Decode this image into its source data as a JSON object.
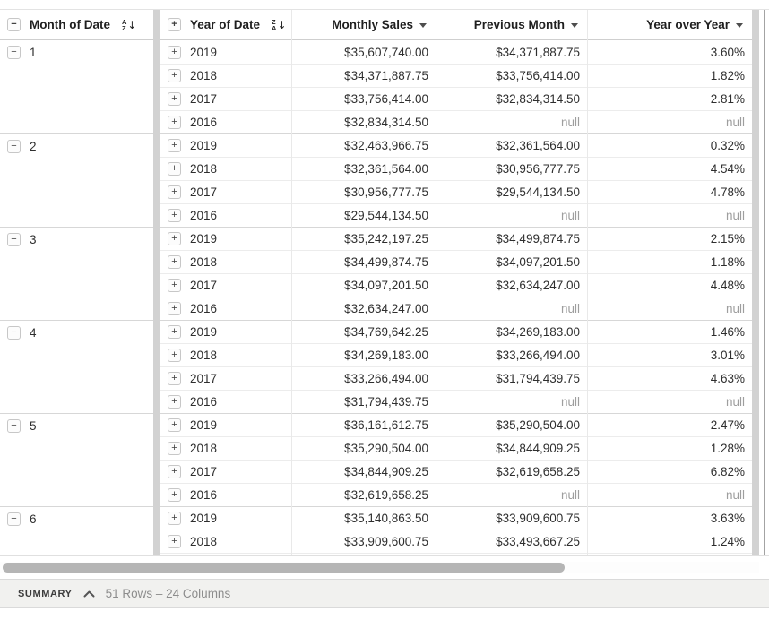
{
  "table": {
    "columns": {
      "month": {
        "label": "Month of Date",
        "sort": "ascending",
        "sort_top": "A",
        "sort_bottom": "Z",
        "toggle": "collapse"
      },
      "year": {
        "label": "Year of Date",
        "sort": "descending",
        "sort_top": "Z",
        "sort_bottom": "A",
        "toggle": "expand"
      },
      "sales": {
        "label": "Monthly Sales"
      },
      "prev": {
        "label": "Previous Month"
      },
      "yoy": {
        "label": "Year over Year"
      }
    },
    "null_text": "null",
    "groups": [
      {
        "month": "1",
        "rows": [
          {
            "year": "2019",
            "sales": "$35,607,740.00",
            "prev": "$34,371,887.75",
            "yoy": "3.60%"
          },
          {
            "year": "2018",
            "sales": "$34,371,887.75",
            "prev": "$33,756,414.00",
            "yoy": "1.82%"
          },
          {
            "year": "2017",
            "sales": "$33,756,414.00",
            "prev": "$32,834,314.50",
            "yoy": "2.81%"
          },
          {
            "year": "2016",
            "sales": "$32,834,314.50",
            "prev": "null",
            "yoy": "null"
          }
        ]
      },
      {
        "month": "2",
        "rows": [
          {
            "year": "2019",
            "sales": "$32,463,966.75",
            "prev": "$32,361,564.00",
            "yoy": "0.32%"
          },
          {
            "year": "2018",
            "sales": "$32,361,564.00",
            "prev": "$30,956,777.75",
            "yoy": "4.54%"
          },
          {
            "year": "2017",
            "sales": "$30,956,777.75",
            "prev": "$29,544,134.50",
            "yoy": "4.78%"
          },
          {
            "year": "2016",
            "sales": "$29,544,134.50",
            "prev": "null",
            "yoy": "null"
          }
        ]
      },
      {
        "month": "3",
        "rows": [
          {
            "year": "2019",
            "sales": "$35,242,197.25",
            "prev": "$34,499,874.75",
            "yoy": "2.15%"
          },
          {
            "year": "2018",
            "sales": "$34,499,874.75",
            "prev": "$34,097,201.50",
            "yoy": "1.18%"
          },
          {
            "year": "2017",
            "sales": "$34,097,201.50",
            "prev": "$32,634,247.00",
            "yoy": "4.48%"
          },
          {
            "year": "2016",
            "sales": "$32,634,247.00",
            "prev": "null",
            "yoy": "null"
          }
        ]
      },
      {
        "month": "4",
        "rows": [
          {
            "year": "2019",
            "sales": "$34,769,642.25",
            "prev": "$34,269,183.00",
            "yoy": "1.46%"
          },
          {
            "year": "2018",
            "sales": "$34,269,183.00",
            "prev": "$33,266,494.00",
            "yoy": "3.01%"
          },
          {
            "year": "2017",
            "sales": "$33,266,494.00",
            "prev": "$31,794,439.75",
            "yoy": "4.63%"
          },
          {
            "year": "2016",
            "sales": "$31,794,439.75",
            "prev": "null",
            "yoy": "null"
          }
        ]
      },
      {
        "month": "5",
        "rows": [
          {
            "year": "2019",
            "sales": "$36,161,612.75",
            "prev": "$35,290,504.00",
            "yoy": "2.47%"
          },
          {
            "year": "2018",
            "sales": "$35,290,504.00",
            "prev": "$34,844,909.25",
            "yoy": "1.28%"
          },
          {
            "year": "2017",
            "sales": "$34,844,909.25",
            "prev": "$32,619,658.25",
            "yoy": "6.82%"
          },
          {
            "year": "2016",
            "sales": "$32,619,658.25",
            "prev": "null",
            "yoy": "null"
          }
        ]
      },
      {
        "month": "6",
        "rows": [
          {
            "year": "2019",
            "sales": "$35,140,863.50",
            "prev": "$33,909,600.75",
            "yoy": "3.63%"
          },
          {
            "year": "2018",
            "sales": "$33,909,600.75",
            "prev": "$33,493,667.25",
            "yoy": "1.24%"
          }
        ]
      }
    ]
  },
  "icons": {
    "collapse_glyph": "−",
    "expand_glyph": "+",
    "sort_arrow_down": "↓"
  },
  "summary": {
    "label": "SUMMARY",
    "info": "51 Rows – 24 Columns"
  },
  "colors": {
    "gutter": "#d2d2d2",
    "null_text": "#9e9e9e",
    "scroll_thumb": "#b5b5b5",
    "summary_bg": "#f1f1ef",
    "group_border": "#d7d7d7",
    "row_border": "#ececec"
  }
}
